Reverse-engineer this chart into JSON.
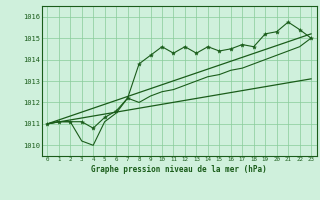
{
  "title": "Graphe pression niveau de la mer (hPa)",
  "background_color": "#cff0dc",
  "grid_color": "#88cc99",
  "line_color": "#1a5c1a",
  "ylim": [
    1009.5,
    1016.5
  ],
  "xlim": [
    -0.5,
    23.5
  ],
  "yticks": [
    1010,
    1011,
    1012,
    1013,
    1014,
    1015,
    1016
  ],
  "xticks": [
    0,
    1,
    2,
    3,
    4,
    5,
    6,
    7,
    8,
    9,
    10,
    11,
    12,
    13,
    14,
    15,
    16,
    17,
    18,
    19,
    20,
    21,
    22,
    23
  ],
  "main_values": [
    1011.0,
    1011.1,
    1011.1,
    1011.1,
    1010.8,
    1011.3,
    1011.6,
    1012.2,
    1013.8,
    1014.2,
    1014.6,
    1014.3,
    1014.6,
    1014.3,
    1014.6,
    1014.4,
    1014.5,
    1014.7,
    1014.6,
    1015.2,
    1015.3,
    1015.75,
    1015.4,
    1015.0
  ],
  "lower_line_x": [
    0,
    23
  ],
  "lower_line_y": [
    1011.0,
    1013.1
  ],
  "upper_line_x": [
    0,
    23
  ],
  "upper_line_y": [
    1011.0,
    1015.2
  ],
  "zigzag_values": [
    1011.0,
    1011.1,
    1011.1,
    1010.2,
    1010.0,
    1011.1,
    1011.5,
    1012.2,
    1012.0,
    1012.3,
    1012.5,
    1012.6,
    1012.8,
    1013.0,
    1013.2,
    1013.3,
    1013.5,
    1013.6,
    1013.8,
    1014.0,
    1014.2,
    1014.4,
    1014.6,
    1015.0
  ]
}
